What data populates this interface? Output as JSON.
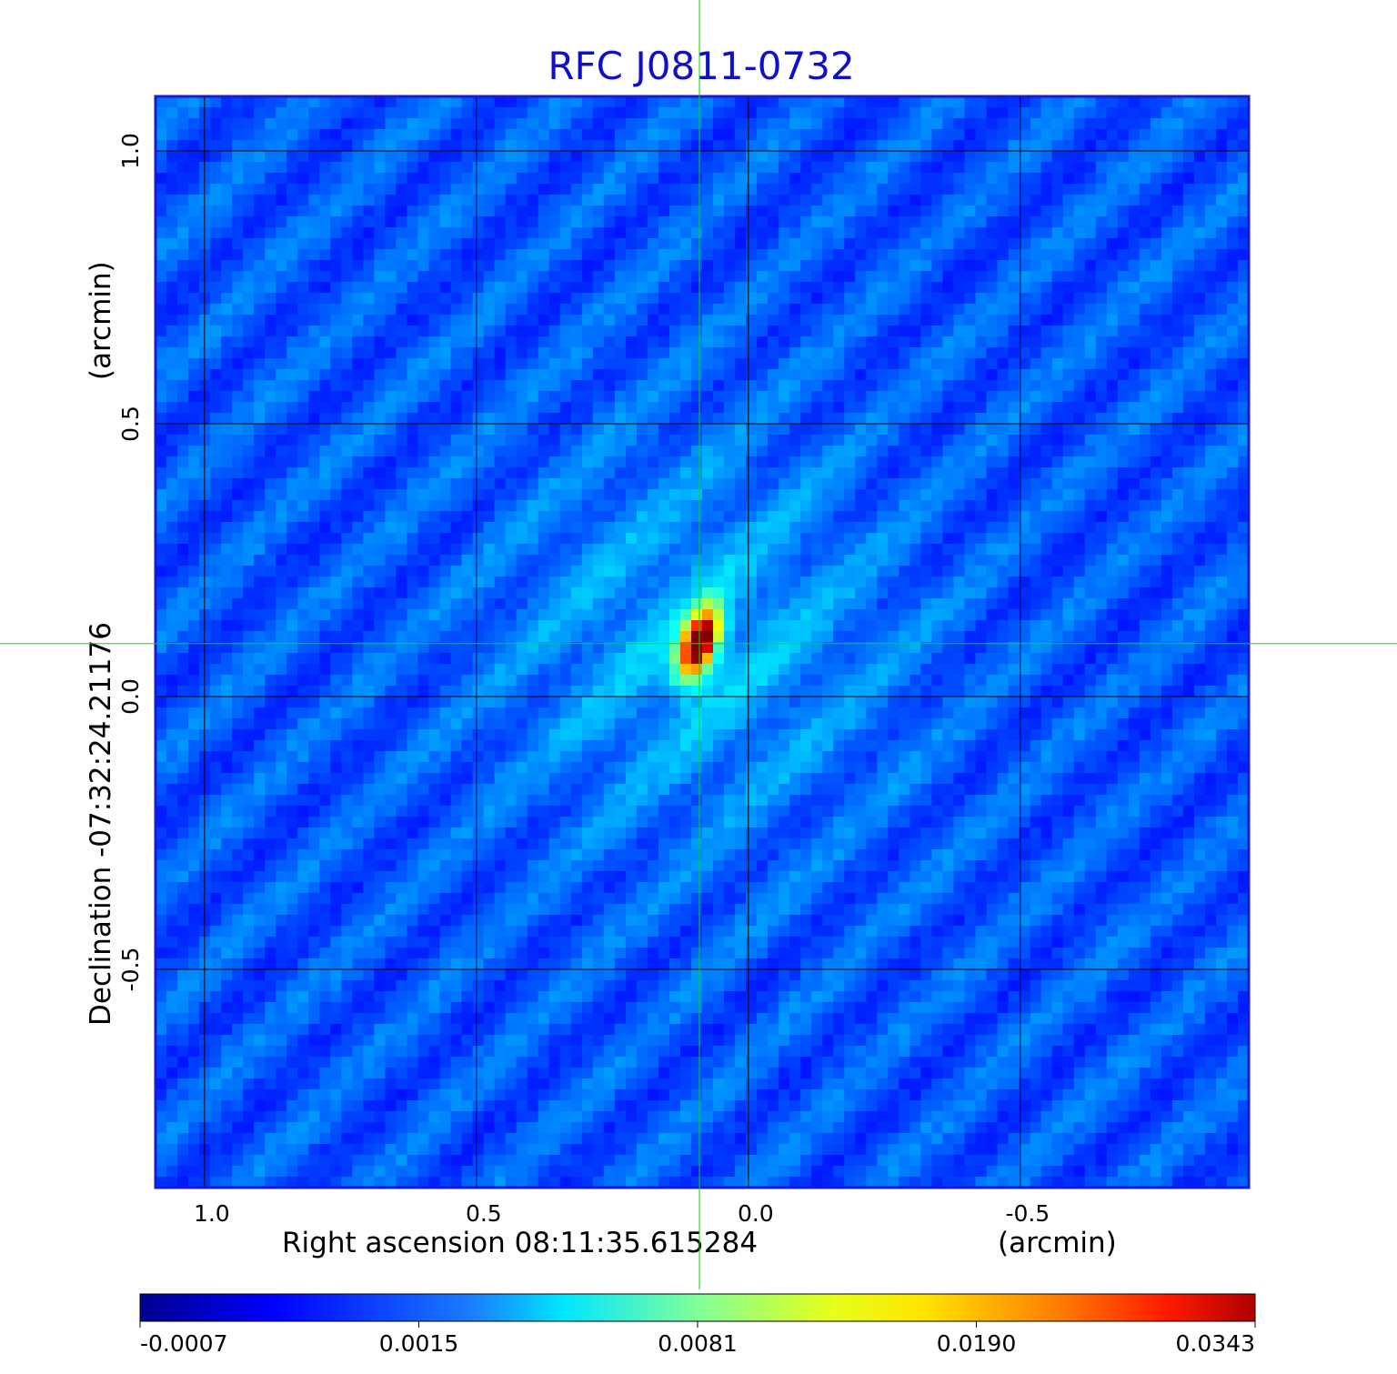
{
  "chart_data": {
    "type": "heatmap",
    "title": "RFC J0811-0732",
    "xlabel": "Right ascension  08:11:35.615284",
    "xunit": "(arcmin)",
    "ylabel": "Declination  -07:32:24.21176",
    "yunit": "(arcmin)",
    "x_ticks": [
      "1.0",
      "0.5",
      "0.0",
      "-0.5"
    ],
    "x_tick_values": [
      1.0,
      0.5,
      0.0,
      -0.5
    ],
    "y_ticks": [
      "1.0",
      "0.5",
      "0.0",
      "-0.5"
    ],
    "y_tick_values": [
      1.0,
      0.5,
      0.0,
      -0.5
    ],
    "xlim": [
      1.09,
      -0.92
    ],
    "ylim": [
      -0.9,
      1.1
    ],
    "grid": true,
    "source_peak": {
      "x": 0.09,
      "y": 0.097
    },
    "crosshair": {
      "x": 0.09,
      "y": 0.097,
      "color": "#00dd00"
    },
    "colorbar": {
      "labels": [
        "-0.0007",
        "0.0015",
        "0.0081",
        "0.0190",
        "0.0343"
      ],
      "colormap": "jet"
    },
    "colors": {
      "title": "#1010cc",
      "frame": "#1a1ad0",
      "grid": "#000000"
    }
  }
}
